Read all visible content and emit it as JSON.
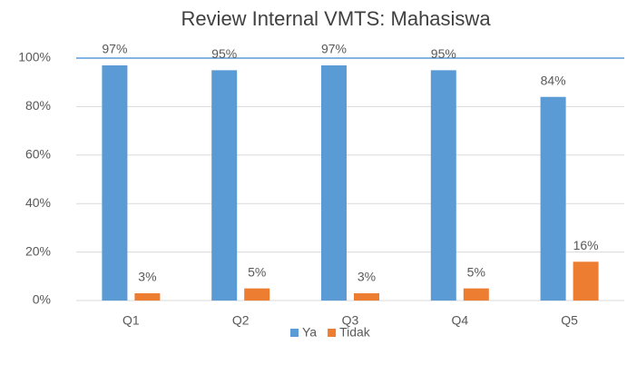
{
  "chart_data": {
    "type": "bar",
    "title": "Review Internal VMTS: Mahasiswa",
    "categories": [
      "Q1",
      "Q2",
      "Q3",
      "Q4",
      "Q5"
    ],
    "series": [
      {
        "name": "Ya",
        "color": "#5b9bd5",
        "values": [
          97,
          95,
          97,
          95,
          84
        ],
        "value_labels": [
          "97%",
          "95%",
          "97%",
          "95%",
          "84%"
        ]
      },
      {
        "name": "Tidak",
        "color": "#ed7d31",
        "values": [
          3,
          5,
          3,
          5,
          16
        ],
        "value_labels": [
          "3%",
          "5%",
          "3%",
          "5%",
          "16%"
        ]
      }
    ],
    "ylim": [
      0,
      100
    ],
    "yticks": [
      {
        "value": 0,
        "label": "0%"
      },
      {
        "value": 20,
        "label": "20%"
      },
      {
        "value": 40,
        "label": "40%"
      },
      {
        "value": 60,
        "label": "60%"
      },
      {
        "value": 80,
        "label": "80%"
      },
      {
        "value": 100,
        "label": "100%"
      }
    ],
    "grid": true,
    "legend": "bottom"
  }
}
